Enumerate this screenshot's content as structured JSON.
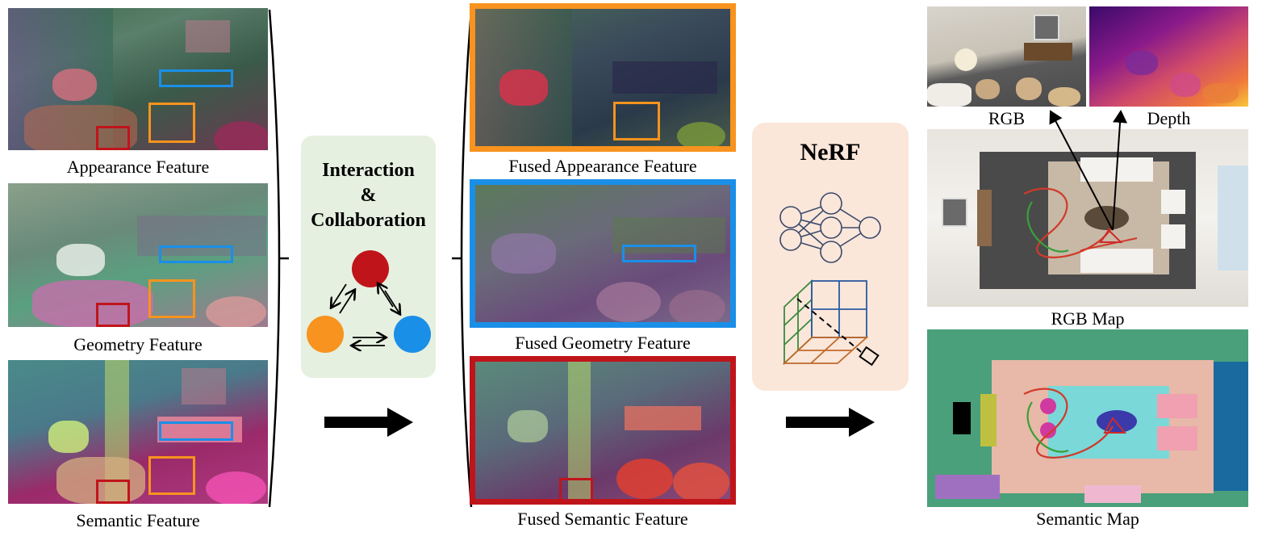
{
  "left_features": [
    {
      "label": "Appearance Feature"
    },
    {
      "label": "Geometry Feature"
    },
    {
      "label": "Semantic Feature"
    }
  ],
  "interaction": {
    "line1": "Interaction",
    "line2": "&",
    "line3": "Collaboration"
  },
  "fused_features": [
    {
      "label": "Fused Appearance Feature",
      "border_color": "#f7931e"
    },
    {
      "label": "Fused Geometry Feature",
      "border_color": "#1a8fe8"
    },
    {
      "label": "Fused Semantic Feature",
      "border_color": "#c0141b"
    }
  ],
  "nerf": {
    "title": "NeRF"
  },
  "outputs": {
    "rgb": "RGB",
    "depth": "Depth",
    "rgb_map": "RGB Map",
    "semantic_map": "Semantic Map"
  },
  "colors": {
    "appearance": "#f7931e",
    "geometry": "#1a8fe8",
    "semantic": "#c0141b",
    "interaction_bg": "#e6f0e0",
    "nerf_bg": "#fbe6da"
  }
}
